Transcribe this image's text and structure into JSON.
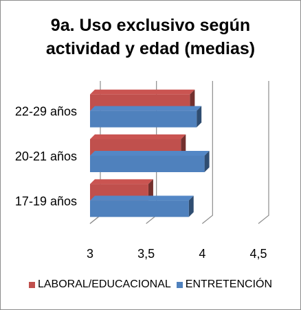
{
  "chart_data": {
    "type": "bar",
    "orientation": "horizontal",
    "style": "3d-clustered",
    "title": "9a. Uso exclusivo según actividad y edad (medias)",
    "title_lines": [
      "9a. Uso exclusivo según",
      "actividad y edad (medias)"
    ],
    "categories": [
      "17-19 años",
      "20-21 años",
      "22-29 años"
    ],
    "series": [
      {
        "name": "LABORAL/EDUCACIONAL",
        "values": [
          3.52,
          3.81,
          3.89
        ],
        "color": "#c0504d"
      },
      {
        "name": "ENTRETENCIÓN",
        "values": [
          3.88,
          4.02,
          3.95
        ],
        "color": "#4f81bd"
      }
    ],
    "xlim": [
      3,
      4.5
    ],
    "xticks": [
      "3",
      "3,5",
      "4",
      "4,5"
    ],
    "xlabel": "",
    "ylabel": "",
    "grid": true,
    "legend_position": "bottom"
  }
}
